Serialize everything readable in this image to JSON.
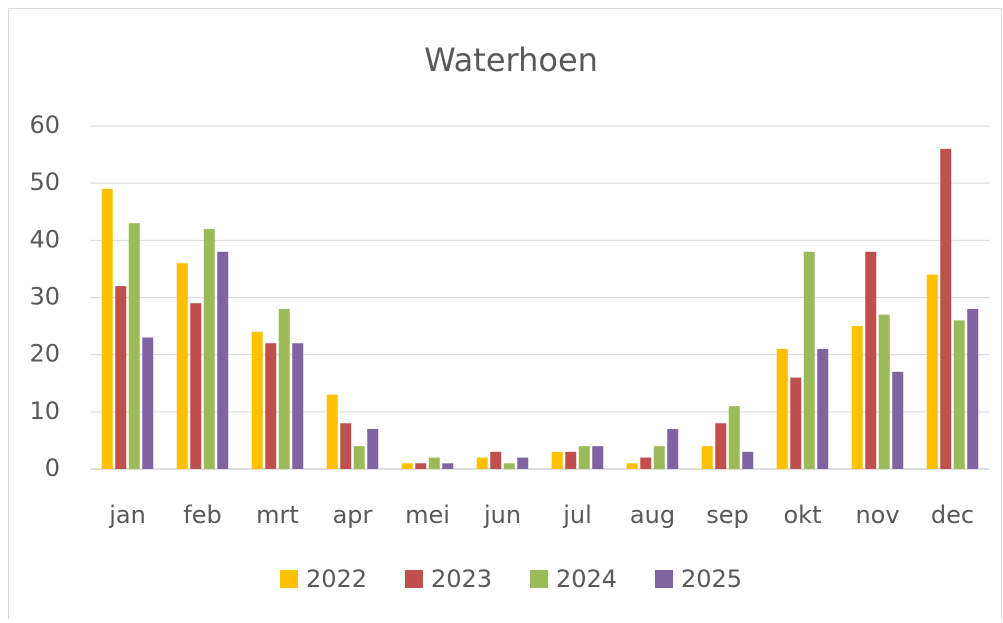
{
  "chart_data": {
    "type": "bar",
    "title": "Waterhoen",
    "categories": [
      "jan",
      "feb",
      "mrt",
      "apr",
      "mei",
      "jun",
      "jul",
      "aug",
      "sep",
      "okt",
      "nov",
      "dec"
    ],
    "series": [
      {
        "name": "2022",
        "color": "#FFC000",
        "values": [
          49,
          36,
          24,
          13,
          1,
          2,
          3,
          1,
          4,
          21,
          25,
          34
        ]
      },
      {
        "name": "2023",
        "color": "#C0504D",
        "values": [
          32,
          29,
          22,
          8,
          1,
          3,
          3,
          2,
          8,
          16,
          38,
          56
        ]
      },
      {
        "name": "2024",
        "color": "#9BBB59",
        "values": [
          43,
          42,
          28,
          4,
          2,
          1,
          4,
          4,
          11,
          38,
          27,
          26
        ]
      },
      {
        "name": "2025",
        "color": "#8064A2",
        "values": [
          23,
          38,
          22,
          7,
          1,
          2,
          4,
          7,
          3,
          21,
          17,
          28
        ]
      }
    ],
    "ylim": [
      0,
      60
    ],
    "yticks": [
      0,
      10,
      20,
      30,
      40,
      50,
      60
    ],
    "grid": true,
    "legend": "bottom"
  }
}
